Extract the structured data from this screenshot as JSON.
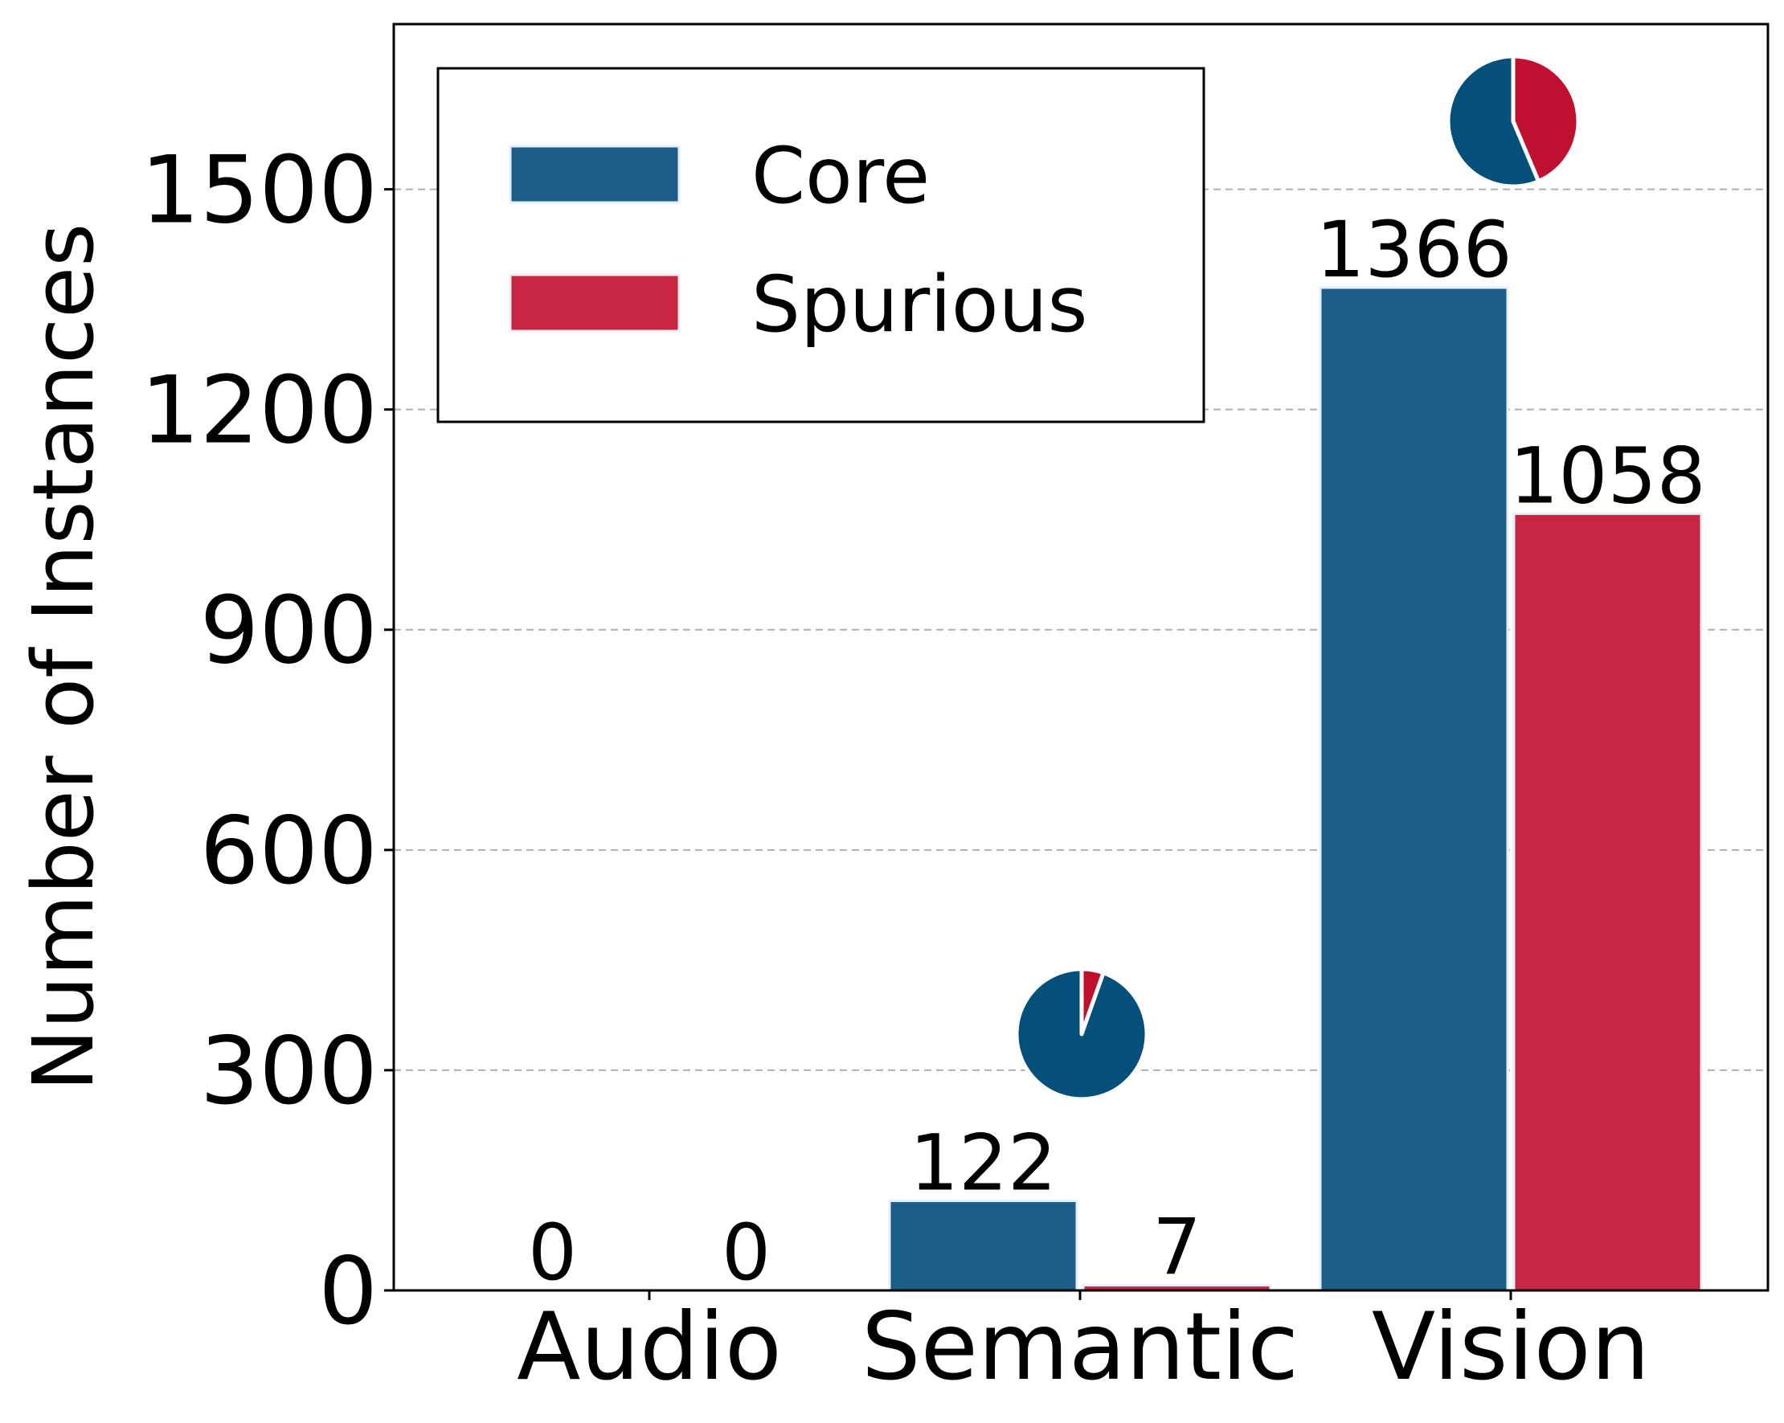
{
  "chart_data": {
    "type": "bar",
    "title": "",
    "xlabel": "",
    "ylabel": "Number of Instances",
    "categories": [
      "Audio",
      "Semantic",
      "Vision"
    ],
    "series": [
      {
        "name": "Core",
        "values": [
          0,
          122,
          1366
        ],
        "color": "#1b5e87"
      },
      {
        "name": "Spurious",
        "values": [
          0,
          7,
          1058
        ],
        "color": "#c72642"
      }
    ],
    "ylim": [
      0,
      1725
    ],
    "yticks": [
      0,
      300,
      600,
      900,
      1200,
      1500
    ],
    "grid": "y-dashed",
    "legend": "top-left",
    "pie_insets": [
      {
        "category": "Semantic",
        "values": [
          122,
          7
        ],
        "colors": [
          "#04507b",
          "#c0102f"
        ]
      },
      {
        "category": "Vision",
        "values": [
          1366,
          1058
        ],
        "colors": [
          "#04507b",
          "#c0102f"
        ]
      }
    ]
  }
}
